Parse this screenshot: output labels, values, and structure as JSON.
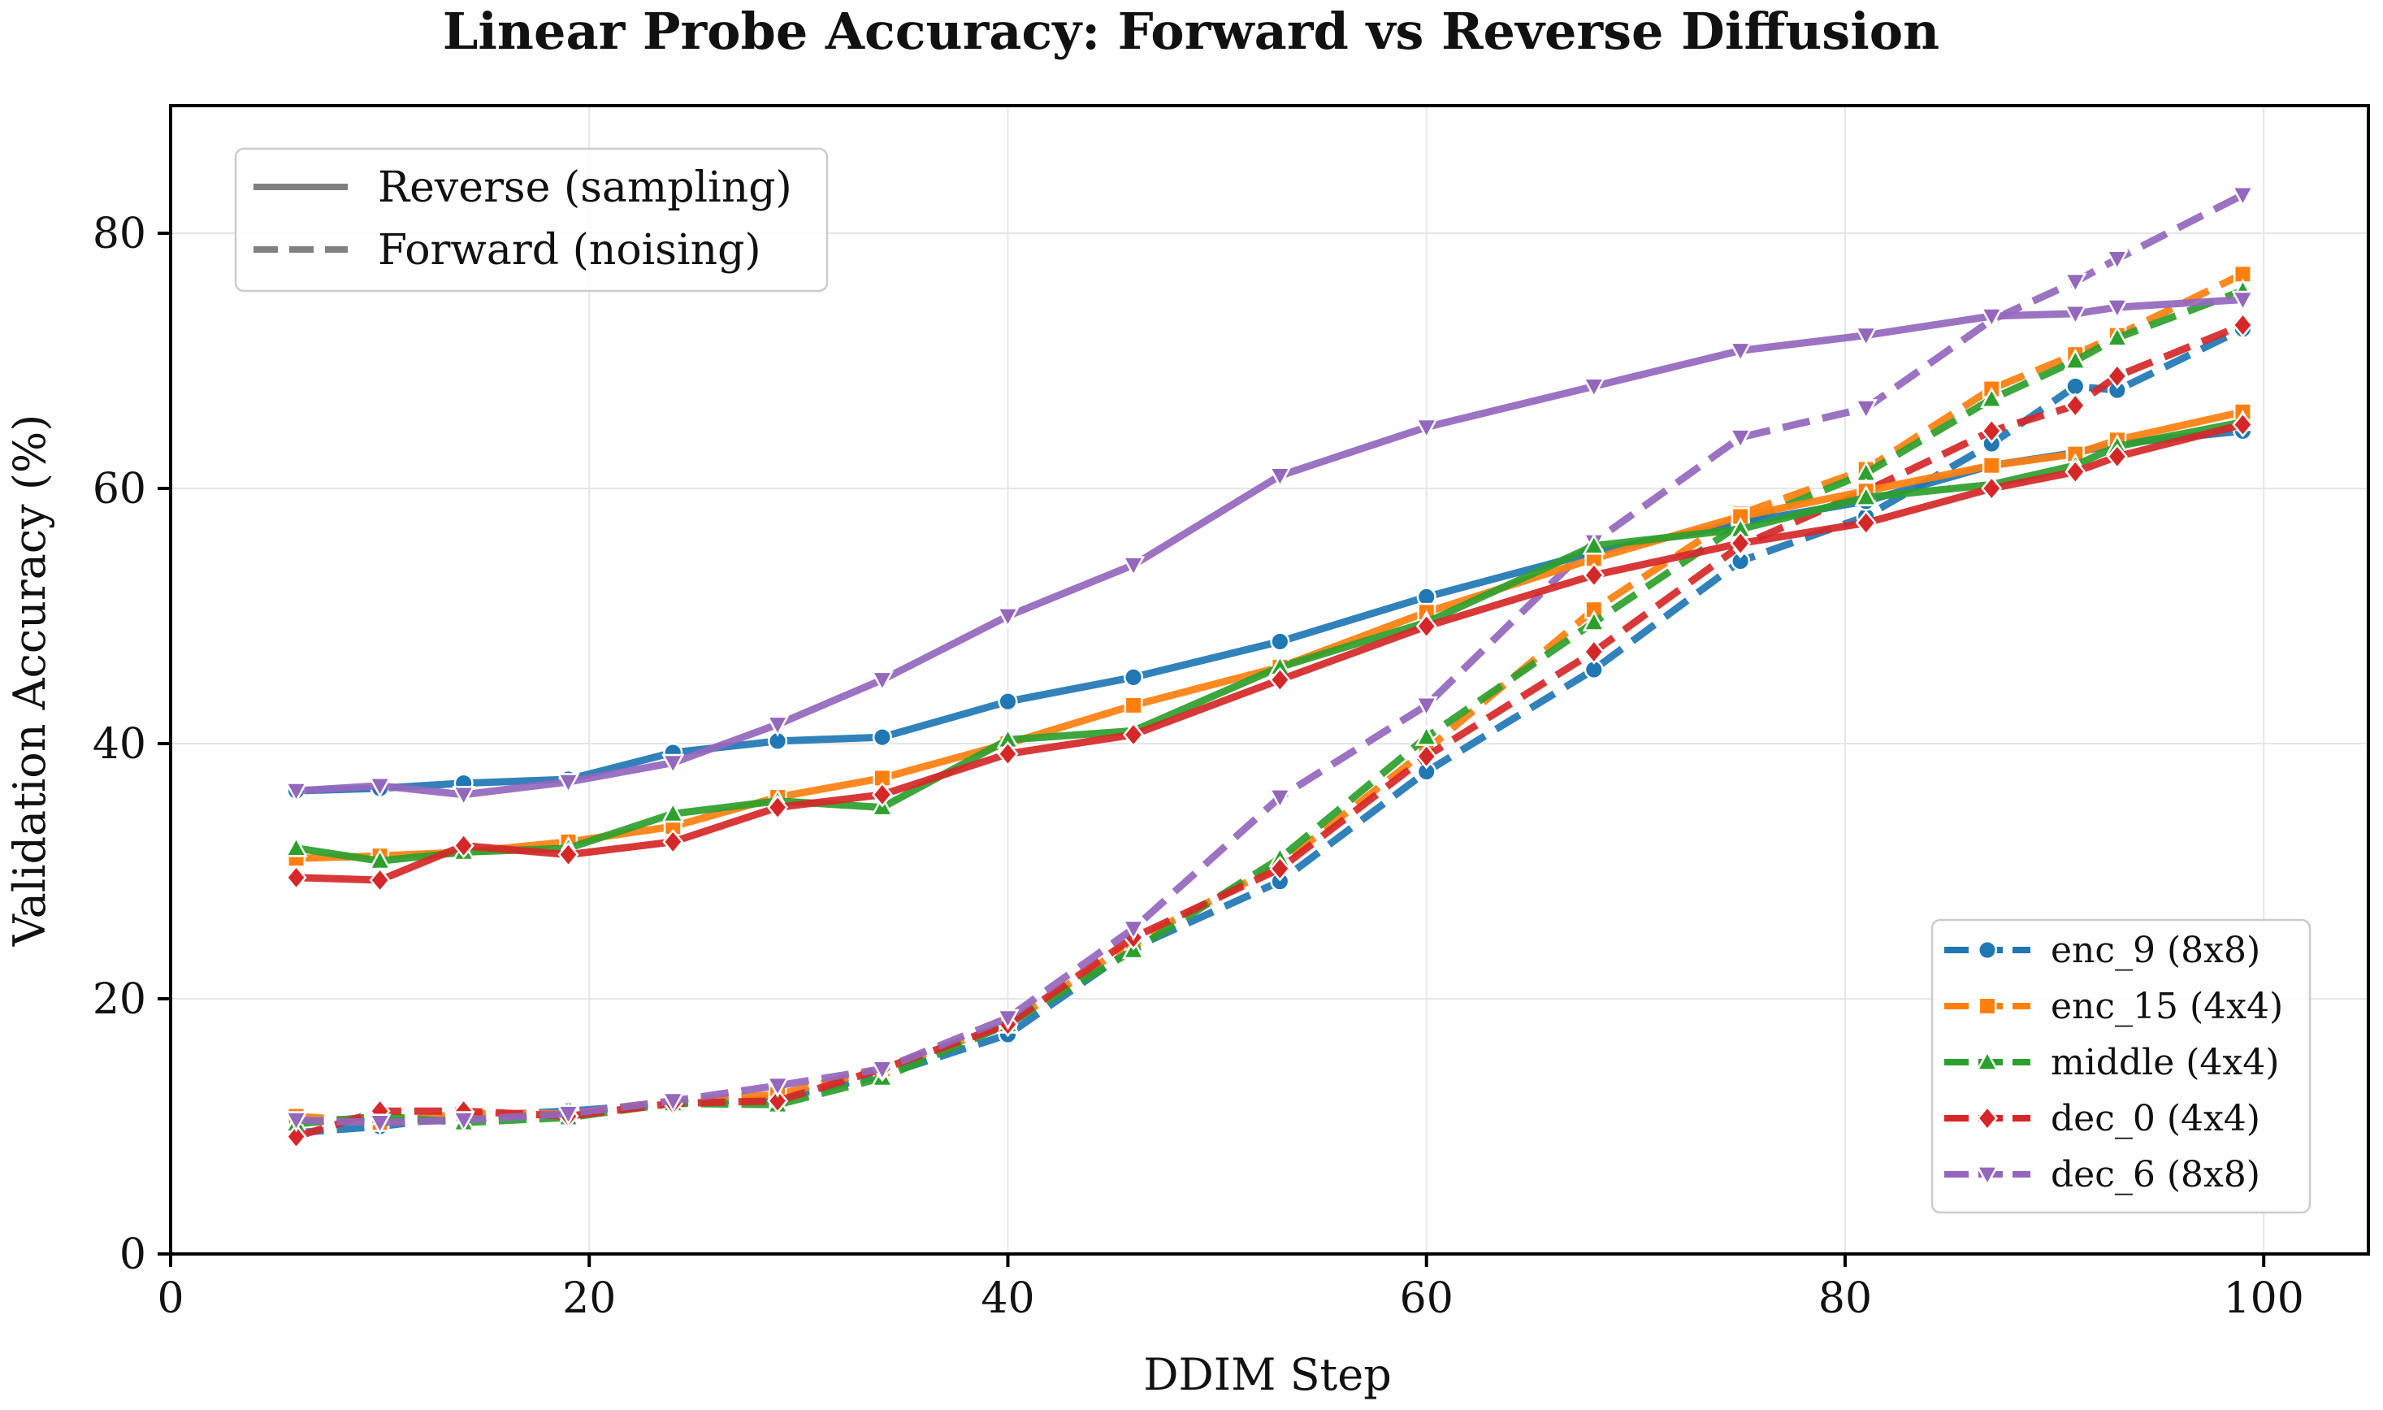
{
  "chart_data": {
    "type": "line",
    "title": "Linear Probe Accuracy: Forward vs Reverse Diffusion",
    "xlabel": "DDIM Step",
    "ylabel": "Validation Accuracy (%)",
    "xlim": [
      0,
      105
    ],
    "ylim": [
      0,
      90
    ],
    "xticks": [
      0,
      20,
      40,
      60,
      80,
      100
    ],
    "yticks": [
      0,
      20,
      40,
      60,
      80
    ],
    "grid": true,
    "style_legend": {
      "placement": "top-left",
      "entries": [
        {
          "label": "Reverse (sampling)",
          "dash": "solid"
        },
        {
          "label": "Forward (noising)",
          "dash": "dashed"
        }
      ]
    },
    "layer_legend": {
      "placement": "bottom-right",
      "entries": [
        {
          "label": "enc_9 (8x8)",
          "color": "#1f77b4",
          "marker": "circle"
        },
        {
          "label": "enc_15 (4x4)",
          "color": "#ff7f0e",
          "marker": "square"
        },
        {
          "label": "middle (4x4)",
          "color": "#2ca02c",
          "marker": "triangle-up"
        },
        {
          "label": "dec_0 (4x4)",
          "color": "#d62728",
          "marker": "diamond"
        },
        {
          "label": "dec_6 (8x8)",
          "color": "#9467bd",
          "marker": "triangle-down"
        }
      ]
    },
    "series": [
      {
        "name": "enc_9 (8x8)",
        "direction": "Forward (noising)",
        "color": "#1f77b4",
        "marker": "circle",
        "dash": "dashed",
        "x": [
          6,
          10,
          14,
          19,
          24,
          29,
          34,
          40,
          46,
          53,
          60,
          68,
          75,
          81,
          87,
          91,
          93,
          99
        ],
        "y": [
          9.5,
          10.0,
          10.8,
          11.2,
          11.8,
          12.2,
          14.0,
          17.2,
          24.0,
          29.2,
          37.8,
          45.8,
          54.3,
          57.8,
          63.5,
          68.0,
          67.7,
          72.5
        ]
      },
      {
        "name": "enc_15 (4x4)",
        "direction": "Forward (noising)",
        "color": "#ff7f0e",
        "marker": "square",
        "dash": "dashed",
        "x": [
          6,
          10,
          14,
          19,
          24,
          29,
          34,
          40,
          46,
          53,
          60,
          68,
          75,
          81,
          87,
          91,
          93,
          99
        ],
        "y": [
          10.8,
          10.3,
          11.0,
          11.0,
          12.0,
          12.5,
          14.5,
          18.0,
          24.5,
          30.5,
          39.5,
          50.5,
          58.0,
          61.5,
          67.8,
          70.5,
          72.0,
          76.8
        ]
      },
      {
        "name": "middle (4x4)",
        "direction": "Forward (noising)",
        "color": "#2ca02c",
        "marker": "triangle-up",
        "dash": "dashed",
        "x": [
          6,
          10,
          14,
          19,
          24,
          29,
          34,
          40,
          46,
          53,
          60,
          68,
          75,
          81,
          87,
          91,
          93,
          99
        ],
        "y": [
          10.2,
          10.8,
          10.3,
          10.7,
          11.8,
          11.7,
          13.8,
          18.0,
          23.8,
          31.0,
          40.5,
          49.5,
          57.2,
          61.2,
          67.0,
          70.0,
          71.8,
          75.5
        ]
      },
      {
        "name": "dec_0 (4x4)",
        "direction": "Forward (noising)",
        "color": "#d62728",
        "marker": "diamond",
        "dash": "dashed",
        "x": [
          6,
          10,
          14,
          19,
          24,
          29,
          34,
          40,
          46,
          53,
          60,
          68,
          75,
          81,
          87,
          91,
          93,
          99
        ],
        "y": [
          9.2,
          11.2,
          11.2,
          10.8,
          11.8,
          12.0,
          14.5,
          18.0,
          24.8,
          30.2,
          39.0,
          47.2,
          55.5,
          59.8,
          64.5,
          66.5,
          68.8,
          72.8
        ]
      },
      {
        "name": "dec_6 (8x8)",
        "direction": "Forward (noising)",
        "color": "#9467bd",
        "marker": "triangle-down",
        "dash": "dashed",
        "x": [
          6,
          10,
          14,
          19,
          24,
          29,
          34,
          40,
          46,
          53,
          60,
          68,
          75,
          81,
          87,
          91,
          93,
          99
        ],
        "y": [
          10.5,
          10.3,
          10.5,
          11.0,
          12.0,
          13.2,
          14.5,
          18.5,
          25.5,
          35.8,
          43.0,
          55.8,
          64.0,
          66.3,
          73.2,
          76.2,
          78.0,
          83.0
        ]
      },
      {
        "name": "enc_9 (8x8)",
        "direction": "Reverse (sampling)",
        "color": "#1f77b4",
        "marker": "circle",
        "dash": "solid",
        "x": [
          6,
          10,
          14,
          19,
          24,
          29,
          34,
          40,
          46,
          53,
          60,
          68,
          75,
          81,
          87,
          91,
          93,
          99
        ],
        "y": [
          36.3,
          36.5,
          36.9,
          37.2,
          39.3,
          40.2,
          40.5,
          43.3,
          45.2,
          48.0,
          51.5,
          55.0,
          57.3,
          59.0,
          61.8,
          62.8,
          63.5,
          64.5
        ]
      },
      {
        "name": "enc_15 (4x4)",
        "direction": "Reverse (sampling)",
        "color": "#ff7f0e",
        "marker": "square",
        "dash": "solid",
        "x": [
          6,
          10,
          14,
          19,
          24,
          29,
          34,
          40,
          46,
          53,
          60,
          68,
          75,
          81,
          87,
          91,
          93,
          99
        ],
        "y": [
          31.0,
          31.2,
          31.5,
          32.3,
          33.5,
          35.8,
          37.3,
          40.0,
          43.0,
          46.0,
          50.3,
          54.5,
          57.8,
          59.8,
          61.8,
          62.7,
          63.8,
          66.0
        ]
      },
      {
        "name": "middle (4x4)",
        "direction": "Reverse (sampling)",
        "color": "#2ca02c",
        "marker": "triangle-up",
        "dash": "solid",
        "x": [
          6,
          10,
          14,
          19,
          24,
          29,
          34,
          40,
          46,
          53,
          60,
          68,
          75,
          81,
          87,
          91,
          93,
          99
        ],
        "y": [
          31.8,
          30.8,
          31.5,
          31.8,
          34.5,
          35.5,
          35.0,
          40.3,
          41.0,
          46.0,
          49.5,
          55.5,
          56.8,
          59.3,
          60.3,
          61.8,
          63.3,
          65.2
        ]
      },
      {
        "name": "dec_0 (4x4)",
        "direction": "Reverse (sampling)",
        "color": "#d62728",
        "marker": "diamond",
        "dash": "solid",
        "x": [
          6,
          10,
          14,
          19,
          24,
          29,
          34,
          40,
          46,
          53,
          60,
          68,
          75,
          81,
          87,
          91,
          93,
          99
        ],
        "y": [
          29.5,
          29.3,
          32.0,
          31.3,
          32.3,
          35.0,
          36.0,
          39.2,
          40.7,
          45.0,
          49.2,
          53.2,
          55.7,
          57.3,
          60.0,
          61.3,
          62.5,
          65.0
        ]
      },
      {
        "name": "dec_6 (8x8)",
        "direction": "Reverse (sampling)",
        "color": "#9467bd",
        "marker": "triangle-down",
        "dash": "solid",
        "x": [
          6,
          10,
          14,
          19,
          24,
          29,
          34,
          40,
          46,
          53,
          60,
          68,
          75,
          81,
          87,
          91,
          93,
          99
        ],
        "y": [
          36.3,
          36.7,
          36.0,
          37.0,
          38.5,
          41.5,
          45.0,
          50.0,
          54.0,
          61.0,
          64.8,
          68.0,
          70.8,
          72.0,
          73.5,
          73.7,
          74.2,
          74.8
        ]
      }
    ]
  }
}
